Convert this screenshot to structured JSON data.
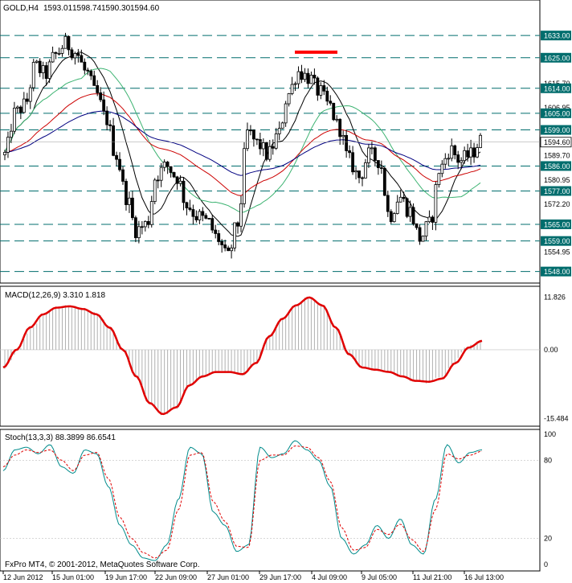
{
  "app": {
    "symbol_label": "GOLD,H4",
    "ohlc": [
      "1593.01",
      "1598.74",
      "1590.30",
      "1594.60"
    ],
    "copyright": "FxPro MT4, © 2001-2012, MetaQuotes Software Corp."
  },
  "colors": {
    "background": "#ffffff",
    "candle": "#000000",
    "ma_fast": "#000000",
    "ma_mid": "#3cb371",
    "ma_slow_red": "#cc0000",
    "ma_slow_blue": "#000080",
    "level_line": "#006d6d",
    "macd_line": "#e00000",
    "macd_hist": "#b0b0b0",
    "stoch_main": "#008b8b",
    "stoch_signal": "#e00000",
    "price_tag_bg": "#006d6d",
    "current_price_bg": "#ffffff",
    "resistance_bar": "#ff0000"
  },
  "chart_data": [
    {
      "type": "candlestick",
      "title": "GOLD,H4",
      "ylim": [
        1545,
        1640
      ],
      "price_axis_ticks": [
        "1615.70",
        "1606.95",
        "1589.70",
        "1580.95",
        "1572.20",
        "1554.95",
        "1548.45"
      ],
      "level_labels": [
        "1633.00",
        "1625.00",
        "1614.00",
        "1605.00",
        "1599.00",
        "1586.00",
        "1577.00",
        "1565.00",
        "1559.00",
        "1548.00"
      ],
      "levels": [
        1633,
        1625,
        1614,
        1605,
        1599,
        1586,
        1577,
        1565,
        1559,
        1548
      ],
      "current_price": "1594.60",
      "x_tick_labels": [
        "12 Jun 2012",
        "15 Jun 01:00",
        "19 Jun 17:00",
        "22 Jun 09:00",
        "27 Jun 01:00",
        "29 Jun 17:00",
        "4 Jul 09:00",
        "9 Jul 05:00",
        "11 Jul 21:00",
        "16 Jul 13:00"
      ],
      "close_path": [
        1590,
        1605,
        1608,
        1622,
        1619,
        1626,
        1630,
        1627,
        1620,
        1612,
        1603,
        1590,
        1575,
        1563,
        1565,
        1583,
        1586,
        1582,
        1572,
        1568,
        1566,
        1560,
        1553,
        1565,
        1598,
        1594,
        1590,
        1597,
        1612,
        1620,
        1618,
        1613,
        1608,
        1600,
        1588,
        1582,
        1590,
        1588,
        1568,
        1575,
        1570,
        1560,
        1565,
        1585,
        1592,
        1588,
        1590,
        1595
      ]
    },
    {
      "type": "line",
      "title": "MACD(12,26,9) 3.310 1.818",
      "ylim": [
        -16.5,
        12.5
      ],
      "ticks": [
        "11.826",
        "0.00",
        "-15.484"
      ],
      "line_path": [
        -4,
        0,
        5,
        8,
        9.5,
        9.8,
        9.2,
        8,
        5,
        0,
        -6,
        -12,
        -14.5,
        -13,
        -8,
        -6,
        -5,
        -5,
        -5.5,
        -3,
        3,
        7,
        10,
        11.8,
        10,
        5,
        -1,
        -4,
        -4.5,
        -5,
        -6,
        -7,
        -7.2,
        -6.5,
        -3,
        0.5,
        2
      ]
    },
    {
      "type": "line",
      "title": "Stoch(13,3,3) 88.3899 86.6541",
      "ylim": [
        0,
        100
      ],
      "ticks": [
        "100",
        "80",
        "20",
        "0"
      ],
      "main_path": [
        72,
        88,
        90,
        85,
        92,
        75,
        70,
        88,
        85,
        60,
        30,
        15,
        5,
        3,
        15,
        50,
        90,
        85,
        40,
        30,
        10,
        15,
        90,
        82,
        85,
        95,
        88,
        80,
        60,
        20,
        8,
        15,
        30,
        20,
        35,
        15,
        8,
        50,
        92,
        78,
        86,
        88
      ],
      "signal_path": [
        75,
        84,
        88,
        86,
        88,
        80,
        72,
        84,
        86,
        66,
        36,
        20,
        9,
        5,
        11,
        42,
        84,
        86,
        48,
        33,
        14,
        13,
        80,
        84,
        84,
        91,
        90,
        82,
        64,
        28,
        11,
        13,
        27,
        23,
        31,
        19,
        10,
        42,
        85,
        81,
        84,
        87
      ]
    }
  ]
}
